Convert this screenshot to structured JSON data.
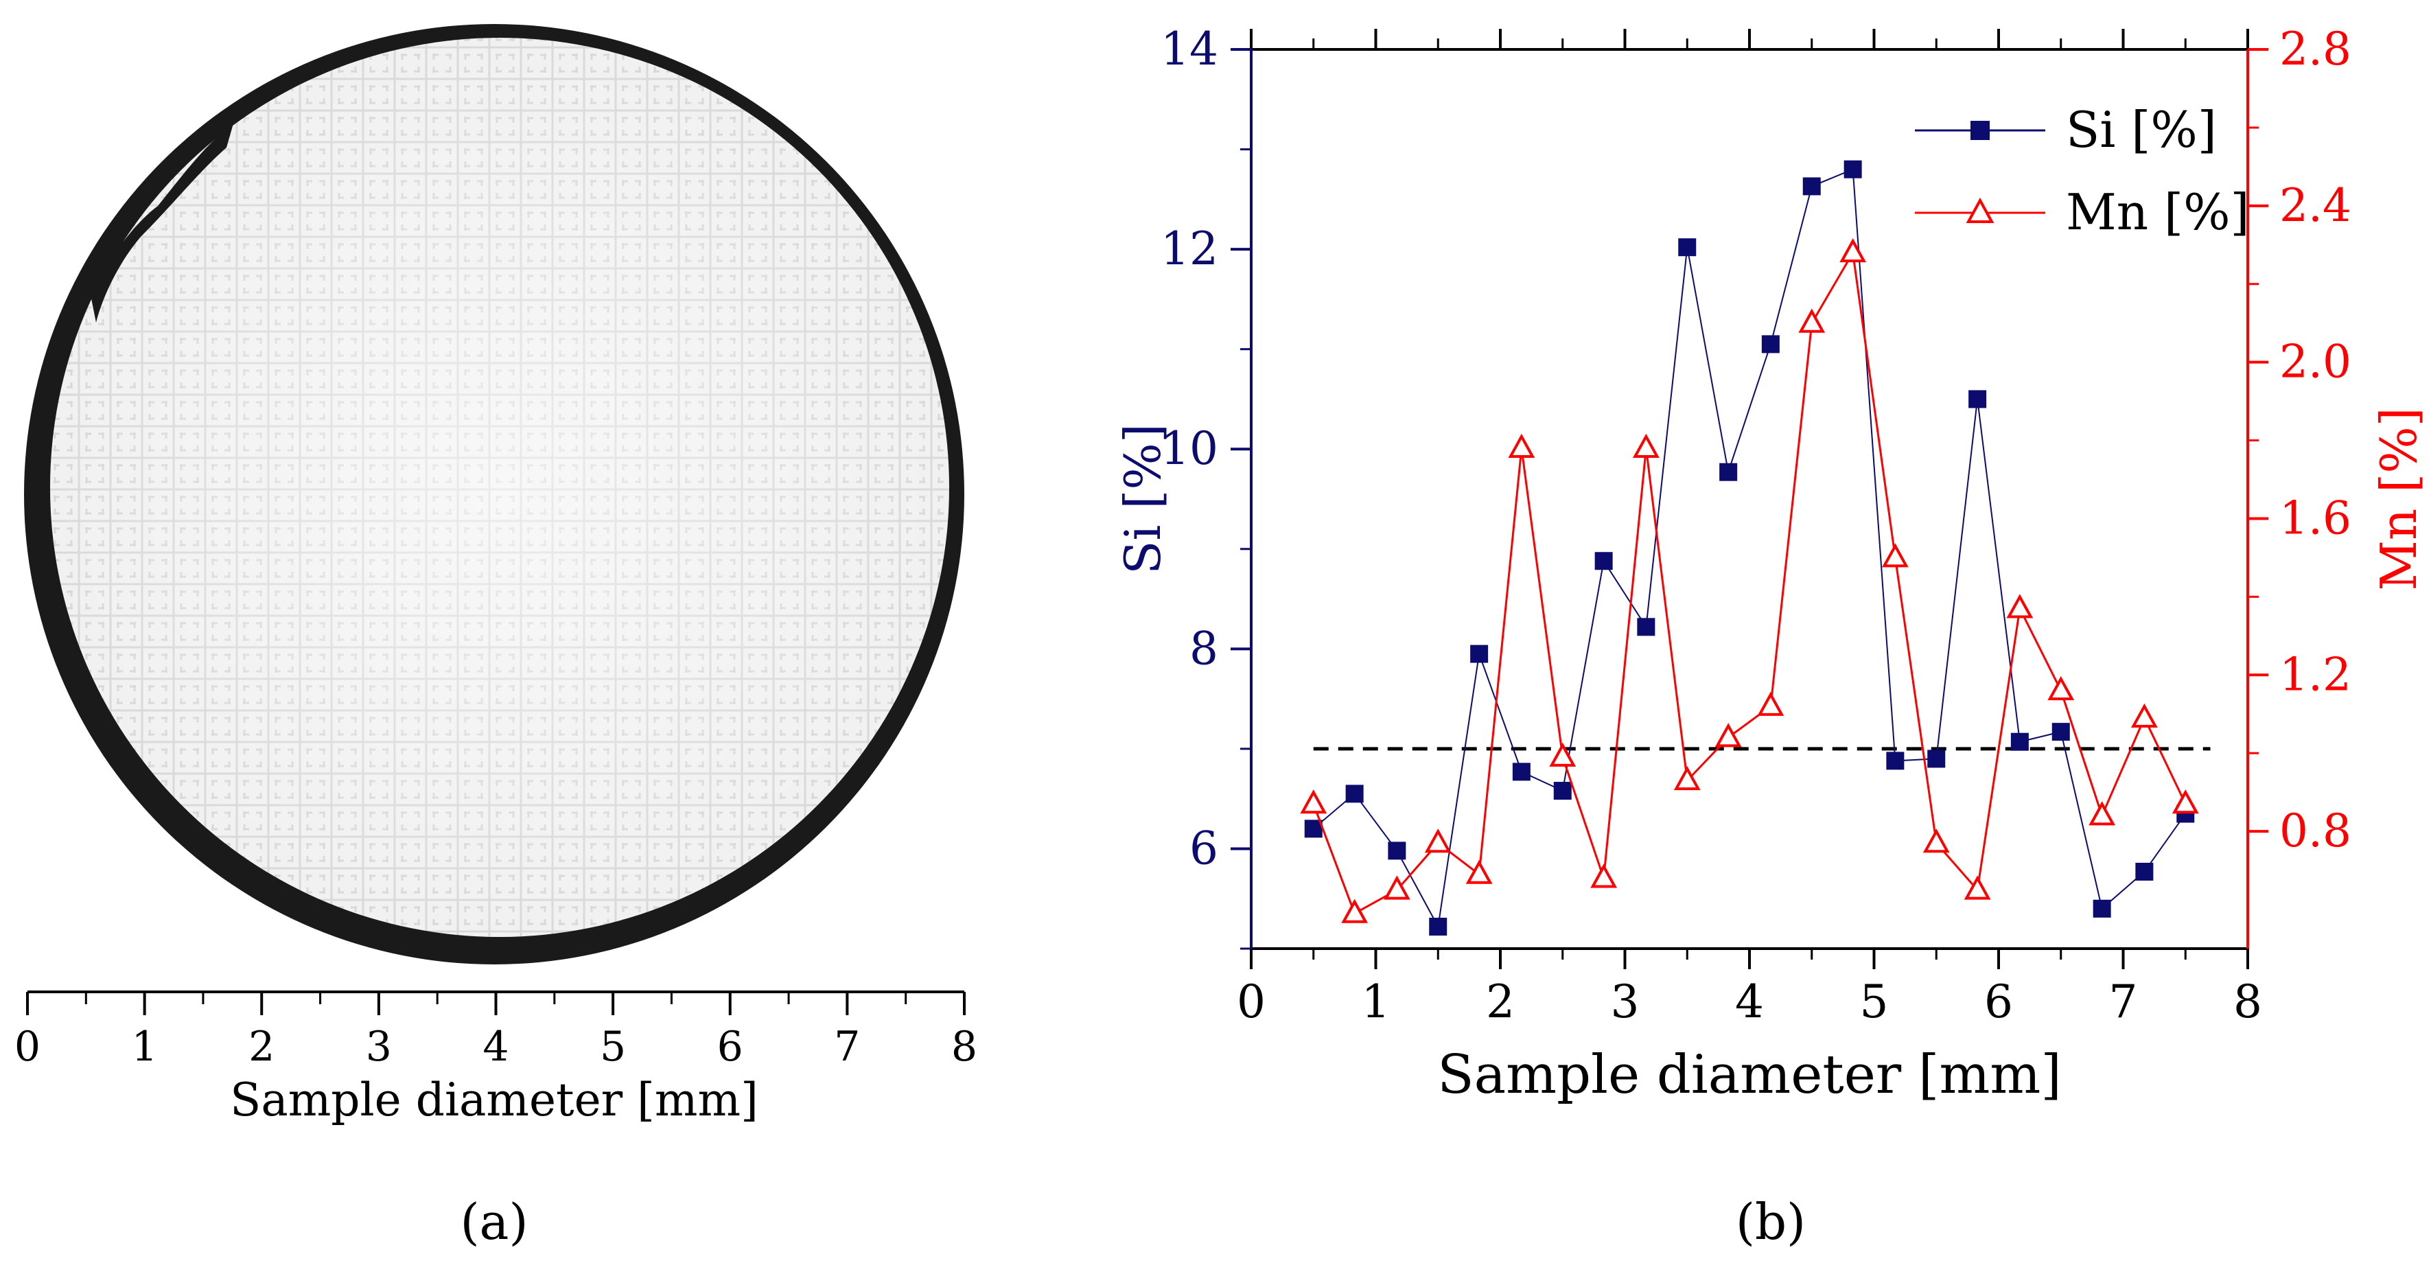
{
  "panel_a": {
    "xlabel": "Sample diameter [mm]",
    "ticks": [
      "0",
      "1",
      "2",
      "3",
      "4",
      "5",
      "6",
      "7",
      "8"
    ],
    "caption": "(a)"
  },
  "panel_b": {
    "caption": "(b)"
  },
  "colors": {
    "si": "#0c0c6e",
    "mn": "#ff0000",
    "axis": "#000000",
    "reference_line": "#000000"
  },
  "chart_data": [
    {
      "type": "scale-bar",
      "title": "",
      "xlabel": "Sample diameter [mm]",
      "xlim": [
        0,
        8
      ],
      "x_ticks": [
        0,
        1,
        2,
        3,
        4,
        5,
        6,
        7,
        8
      ],
      "minor_ticks_per_interval": 2,
      "note": "Micrograph of the circular sample cross-section spanning the 0–8 mm scale"
    },
    {
      "type": "line",
      "title": "",
      "xlabel": "Sample diameter [mm]",
      "ylabel_left": "Si [%]",
      "ylabel_right": "Mn [%]",
      "xlim": [
        0,
        8
      ],
      "ylim_left": [
        5,
        14
      ],
      "ylim_right": [
        0.5,
        2.8
      ],
      "x_ticks": [
        0,
        1,
        2,
        3,
        4,
        5,
        6,
        7,
        8
      ],
      "y_ticks_left": [
        6,
        8,
        10,
        12,
        14
      ],
      "y_ticks_right": [
        0.8,
        1.2,
        1.6,
        2.0,
        2.4,
        2.8
      ],
      "x_tick_labels": [
        "0",
        "1",
        "2",
        "3",
        "4",
        "5",
        "6",
        "7",
        "8"
      ],
      "y_tick_labels_left": [
        "6",
        "8",
        "10",
        "12",
        "14"
      ],
      "y_tick_labels_right": [
        "0.8",
        "1.2",
        "1.6",
        "2.0",
        "2.4",
        "2.8"
      ],
      "grid": false,
      "legend": "top-right",
      "reference_line": {
        "axis": "left",
        "value": 7.0,
        "style": "dashed",
        "x_range": [
          0.5,
          7.7
        ]
      },
      "series": [
        {
          "name": "Si [%]",
          "axis": "left",
          "marker": "filled-square",
          "color": "#0c0c6e",
          "x": [
            0.5,
            0.83,
            1.17,
            1.5,
            1.83,
            2.17,
            2.5,
            2.83,
            3.17,
            3.5,
            3.83,
            4.17,
            4.5,
            4.83,
            5.17,
            5.5,
            5.83,
            6.17,
            6.5,
            6.83,
            7.17,
            7.5
          ],
          "values": [
            6.2,
            6.55,
            5.98,
            5.22,
            7.95,
            6.77,
            6.58,
            8.88,
            8.22,
            12.02,
            9.77,
            11.05,
            12.63,
            12.8,
            6.88,
            6.9,
            10.5,
            7.07,
            7.17,
            5.4,
            5.77,
            6.35
          ]
        },
        {
          "name": "Mn [%]",
          "axis": "right",
          "marker": "open-triangle",
          "color": "#ff0000",
          "x": [
            0.5,
            0.83,
            1.17,
            1.5,
            1.83,
            2.17,
            2.5,
            2.83,
            3.17,
            3.5,
            3.83,
            4.17,
            4.5,
            4.83,
            5.17,
            5.5,
            5.83,
            6.17,
            6.5,
            6.83,
            7.17,
            7.5
          ],
          "values": [
            0.87,
            0.59,
            0.65,
            0.77,
            0.69,
            1.78,
            0.99,
            0.68,
            1.78,
            0.93,
            1.04,
            1.12,
            2.1,
            2.28,
            1.5,
            0.77,
            0.65,
            1.37,
            1.16,
            0.84,
            1.09,
            0.87
          ]
        }
      ]
    }
  ]
}
